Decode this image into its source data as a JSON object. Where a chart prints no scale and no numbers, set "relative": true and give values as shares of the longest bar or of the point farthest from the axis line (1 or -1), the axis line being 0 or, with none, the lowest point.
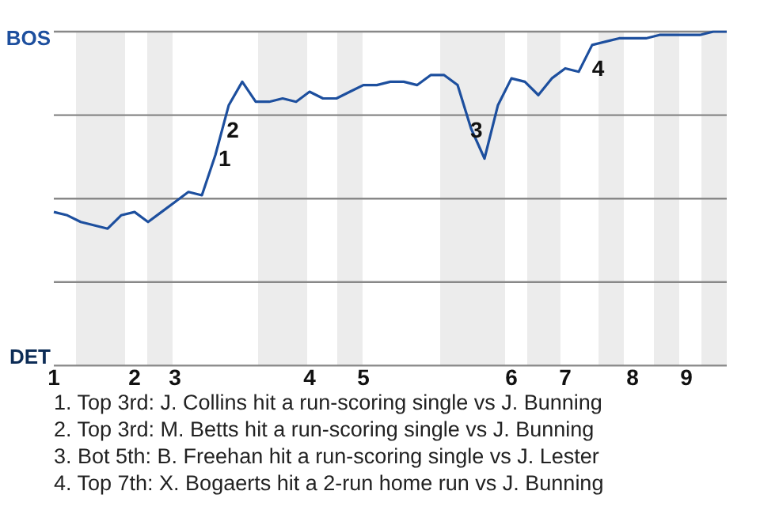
{
  "chart_data": {
    "type": "line",
    "relative": true,
    "categories": [
      "1",
      null,
      null,
      null,
      null,
      null,
      "2",
      null,
      null,
      "3",
      null,
      null,
      null,
      null,
      null,
      null,
      null,
      null,
      null,
      "4",
      null,
      null,
      null,
      "5",
      null,
      null,
      null,
      null,
      null,
      null,
      null,
      null,
      null,
      null,
      "6",
      null,
      null,
      null,
      "7",
      null,
      null,
      null,
      null,
      "8",
      null,
      null,
      null,
      "9",
      null,
      null,
      null
    ],
    "series": [
      {
        "color": "#1d4f9e",
        "values": [
          0.46,
          0.45,
          0.43,
          0.42,
          0.41,
          0.45,
          0.46,
          0.43,
          0.46,
          0.49,
          0.52,
          0.51,
          0.63,
          0.78,
          0.85,
          0.79,
          0.79,
          0.8,
          0.79,
          0.82,
          0.8,
          0.8,
          0.82,
          0.84,
          0.84,
          0.85,
          0.85,
          0.84,
          0.87,
          0.87,
          0.84,
          0.71,
          0.62,
          0.78,
          0.86,
          0.85,
          0.81,
          0.86,
          0.89,
          0.88,
          0.96,
          0.97,
          0.98,
          0.98,
          0.98,
          0.99,
          0.99,
          0.99,
          0.99,
          1,
          1
        ]
      }
    ],
    "marker": "none",
    "line_style": "solid",
    "ref_lines": [
      {
        "axis": "y",
        "value": 1,
        "label": "BOS",
        "color": "#888888"
      },
      {
        "axis": "y",
        "value": 0.75,
        "color": "#888888"
      },
      {
        "axis": "y",
        "value": 0.5,
        "color": "#888888"
      },
      {
        "axis": "y",
        "value": 0.25,
        "color": "#888888"
      },
      {
        "axis": "y",
        "value": 0,
        "label": "DET",
        "color": "#888888"
      }
    ],
    "annotations": [
      "1",
      "2",
      "3",
      "4",
      "1. Top 3rd: J. Collins hit a run-scoring single vs J. Bunning",
      "2. Top 3rd: M. Betts hit a run-scoring single vs J. Bunning",
      "3. Bot 5th: B. Freehan hit a run-scoring single vs J. Lester",
      "4. Top 7th: X. Bogaerts hit a 2-run home run vs J. Bunning"
    ]
  }
}
